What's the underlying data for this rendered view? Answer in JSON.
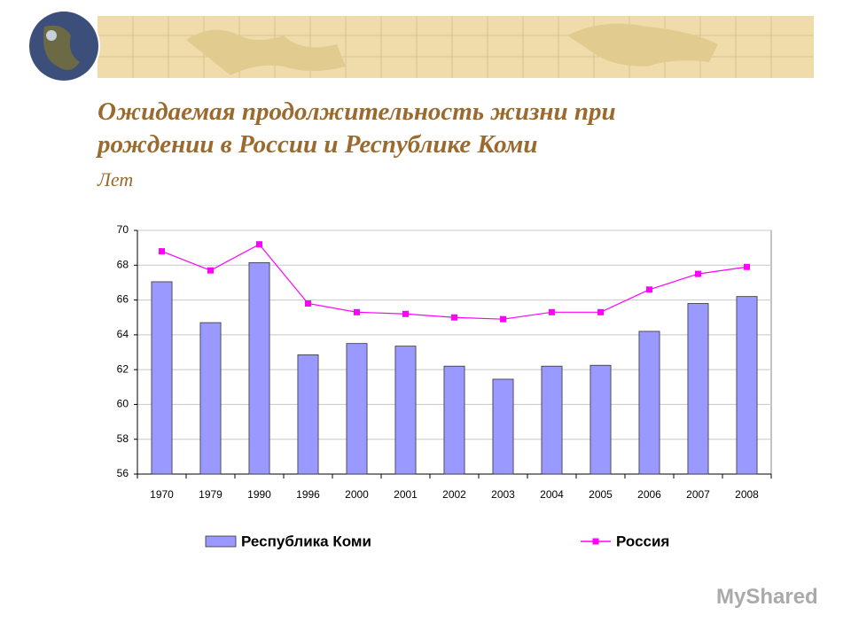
{
  "chart_data": {
    "type": "bar_line",
    "title": "Ожидаемая продолжительность жизни при рождении в России и Республике Коми",
    "subtitle": "Лет",
    "categories": [
      "1970",
      "1979",
      "1990",
      "1996",
      "2000",
      "2001",
      "2002",
      "2003",
      "2004",
      "2005",
      "2006",
      "2007",
      "2008"
    ],
    "series": [
      {
        "name": "Республика Коми",
        "type": "bar",
        "color": "#9999ff",
        "values": [
          67.05,
          64.7,
          68.15,
          62.85,
          63.5,
          63.35,
          62.2,
          61.45,
          62.2,
          62.25,
          64.2,
          65.8,
          66.2
        ]
      },
      {
        "name": "Россия",
        "type": "line",
        "color": "#ff00ff",
        "values": [
          68.8,
          67.7,
          69.2,
          65.8,
          65.3,
          65.2,
          65.0,
          64.9,
          65.3,
          65.3,
          66.6,
          67.5,
          67.9
        ]
      }
    ],
    "ylim": [
      56,
      70
    ],
    "yticks": [
      56,
      58,
      60,
      62,
      64,
      66,
      68,
      70
    ],
    "grid": true,
    "legend": "bottom"
  },
  "watermark": "MyShared"
}
